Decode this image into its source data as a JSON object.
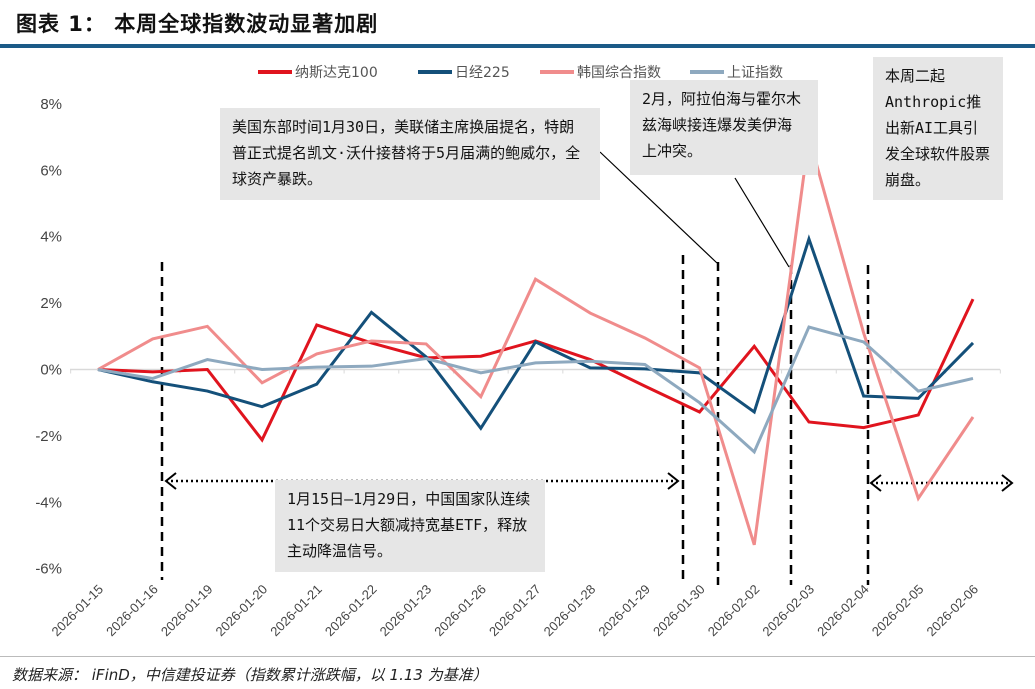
{
  "title": "图表 1：   本周全球指数波动显著加剧",
  "footer": "数据来源：  iFinD，中信建投证券（指数累计涨跌幅，以 1.13 为基准）",
  "annotations": [
    "美国东部时间1月30日，美联储主席换届提名，特朗普正式提名凯文·沃什接替将于5月届满的鲍威尔，全球资产暴跌。",
    "2月，阿拉伯海与霍尔木兹海峡接连爆发美伊海上冲突。",
    "本周二起Anthropic推出新AI工具引发全球软件股票崩盘。",
    "1月15日–1月29日，中国国家队连续11个交易日大额减持宽基ETF，释放主动降温信号。"
  ],
  "chart_data": {
    "type": "line",
    "title": "本周全球指数波动显著加剧",
    "xlabel": "",
    "ylabel": "",
    "ylim": [
      -6,
      8
    ],
    "yticks": [
      "8%",
      "6%",
      "4%",
      "2%",
      "0%",
      "-2%",
      "-4%",
      "-6%"
    ],
    "ytick_values": [
      8,
      6,
      4,
      2,
      0,
      -2,
      -4,
      -6
    ],
    "legend_position": "top",
    "grid": false,
    "categories": [
      "2026-01-15",
      "2026-01-16",
      "2026-01-19",
      "2026-01-20",
      "2026-01-21",
      "2026-01-22",
      "2026-01-23",
      "2026-01-26",
      "2026-01-27",
      "2026-01-28",
      "2026-01-29",
      "2026-01-30",
      "2026-02-02",
      "2026-02-03",
      "2026-02-04",
      "2026-02-05",
      "2026-02-06"
    ],
    "series": [
      {
        "name": "纳斯达克100",
        "color": "#e0141e",
        "values": [
          0,
          -0.07,
          0,
          -2.12,
          1.34,
          0.8,
          0.35,
          0.4,
          0.86,
          0.3,
          -0.5,
          -1.28,
          0.7,
          -1.58,
          -1.75,
          -1.37,
          2.12
        ]
      },
      {
        "name": "日经225",
        "color": "#14507a",
        "values": [
          0,
          -0.37,
          -0.65,
          -1.12,
          -0.44,
          1.72,
          0.38,
          -1.77,
          0.83,
          0.05,
          0.02,
          -0.1,
          -1.28,
          3.93,
          -0.8,
          -0.87,
          0.8
        ]
      },
      {
        "name": "韩国综合指数",
        "color": "#f08c8c",
        "values": [
          0,
          0.92,
          1.3,
          -0.4,
          0.47,
          0.86,
          0.77,
          -0.82,
          2.72,
          1.7,
          0.95,
          0.05,
          -5.28,
          7.0,
          1.1,
          -3.88,
          -1.43
        ]
      },
      {
        "name": "上证指数",
        "color": "#8ea9bf",
        "values": [
          0,
          -0.27,
          0.3,
          0,
          0.07,
          0.1,
          0.33,
          -0.1,
          0.2,
          0.25,
          0.15,
          -1.0,
          -2.48,
          1.28,
          0.83,
          -0.65,
          -0.27
        ]
      }
    ],
    "event_markers": [
      "2026-01-16",
      "2026-01-30",
      "2026-02-02",
      "2026-02-03",
      "2026-02-04"
    ]
  }
}
